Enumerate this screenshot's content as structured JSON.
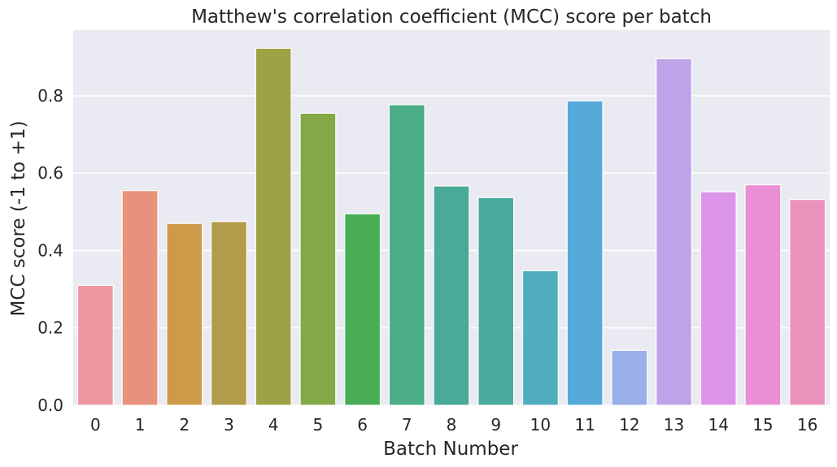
{
  "chart_data": {
    "type": "bar",
    "title": "Matthew's correlation coefficient (MCC) score per batch",
    "xlabel": "Batch Number",
    "ylabel": "MCC score (-1 to +1)",
    "categories": [
      "0",
      "1",
      "2",
      "3",
      "4",
      "5",
      "6",
      "7",
      "8",
      "9",
      "10",
      "11",
      "12",
      "13",
      "14",
      "15",
      "16"
    ],
    "values": [
      0.31,
      0.555,
      0.47,
      0.475,
      0.923,
      0.755,
      0.495,
      0.777,
      0.567,
      0.537,
      0.348,
      0.787,
      0.142,
      0.896,
      0.552,
      0.57,
      0.532
    ],
    "yticks": [
      "0.0",
      "0.2",
      "0.4",
      "0.6",
      "0.8"
    ],
    "ylim": [
      0,
      0.97
    ],
    "grid": true,
    "colors": [
      "#ec96a0",
      "#e7927a",
      "#ce9949",
      "#b29c4b",
      "#9ea244",
      "#83a947",
      "#48ad55",
      "#4bae87",
      "#49aa99",
      "#4aab9f",
      "#4fadbe",
      "#55aad9",
      "#9aaeea",
      "#bea3e8",
      "#dc94e9",
      "#ea8fd4",
      "#ea92bb"
    ],
    "background": "#eaeaf2"
  }
}
